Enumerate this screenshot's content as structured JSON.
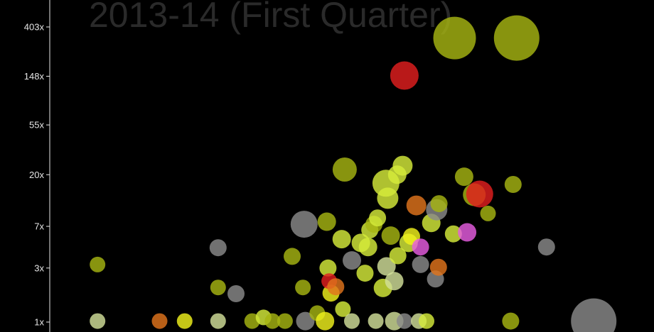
{
  "chart_data": {
    "type": "scatter",
    "title": "2013-14 (First Quarter)",
    "xlabel": "",
    "ylabel": "",
    "y_scale": "log",
    "ylim": [
      0.95,
      530
    ],
    "y_ticks": [
      {
        "value": 1,
        "label": "1x"
      },
      {
        "value": 3,
        "label": "3x"
      },
      {
        "value": 7,
        "label": "7x"
      },
      {
        "value": 20,
        "label": "20x"
      },
      {
        "value": 55,
        "label": "55x"
      },
      {
        "value": 148,
        "label": "148x"
      },
      {
        "value": 403,
        "label": "403x"
      }
    ],
    "x_scale": "unlabeled",
    "xlim": [
      0,
      100
    ],
    "grid": false,
    "colors": {
      "olive": "#a6b412",
      "lime": "#d6ec3a",
      "yellow": "#f0f21c",
      "red": "#e21f1f",
      "orange": "#e0741c",
      "gray": "#8a8a8a",
      "pink": "#e75de0",
      "pale": "#d2df9a"
    },
    "points": [
      {
        "x": 7.4,
        "y": 3.22,
        "size": 11,
        "color": "olive"
      },
      {
        "x": 7.4,
        "y": 1.02,
        "size": 11,
        "color": "pale"
      },
      {
        "x": 17.8,
        "y": 1.02,
        "size": 11,
        "color": "orange"
      },
      {
        "x": 22.0,
        "y": 1.02,
        "size": 11,
        "color": "yellow"
      },
      {
        "x": 27.6,
        "y": 1.02,
        "size": 11,
        "color": "pale"
      },
      {
        "x": 27.6,
        "y": 4.53,
        "size": 12,
        "color": "gray"
      },
      {
        "x": 27.6,
        "y": 2.02,
        "size": 11,
        "color": "olive"
      },
      {
        "x": 30.6,
        "y": 1.78,
        "size": 12,
        "color": "gray"
      },
      {
        "x": 33.3,
        "y": 1.02,
        "size": 11,
        "color": "olive"
      },
      {
        "x": 35.2,
        "y": 1.1,
        "size": 11,
        "color": "lime"
      },
      {
        "x": 36.7,
        "y": 1.02,
        "size": 11,
        "color": "olive"
      },
      {
        "x": 38.8,
        "y": 1.02,
        "size": 11,
        "color": "olive"
      },
      {
        "x": 40.0,
        "y": 3.8,
        "size": 12,
        "color": "olive"
      },
      {
        "x": 42.0,
        "y": 7.3,
        "size": 19,
        "color": "gray"
      },
      {
        "x": 42.2,
        "y": 1.02,
        "size": 13,
        "color": "gray"
      },
      {
        "x": 41.8,
        "y": 2.02,
        "size": 11,
        "color": "olive"
      },
      {
        "x": 44.2,
        "y": 1.2,
        "size": 11,
        "color": "olive"
      },
      {
        "x": 45.5,
        "y": 1.02,
        "size": 13,
        "color": "yellow"
      },
      {
        "x": 45.8,
        "y": 7.7,
        "size": 13,
        "color": "olive"
      },
      {
        "x": 46.0,
        "y": 3.0,
        "size": 12,
        "color": "lime"
      },
      {
        "x": 46.5,
        "y": 1.8,
        "size": 12,
        "color": "yellow"
      },
      {
        "x": 46.2,
        "y": 2.3,
        "size": 11,
        "color": "red"
      },
      {
        "x": 47.3,
        "y": 2.05,
        "size": 12,
        "color": "orange"
      },
      {
        "x": 48.5,
        "y": 1.3,
        "size": 11,
        "color": "lime"
      },
      {
        "x": 48.8,
        "y": 22.2,
        "size": 17,
        "color": "olive"
      },
      {
        "x": 48.3,
        "y": 5.4,
        "size": 13,
        "color": "lime"
      },
      {
        "x": 50.0,
        "y": 3.5,
        "size": 13,
        "color": "gray"
      },
      {
        "x": 50.0,
        "y": 1.02,
        "size": 11,
        "color": "pale"
      },
      {
        "x": 51.5,
        "y": 5.0,
        "size": 13,
        "color": "lime"
      },
      {
        "x": 52.2,
        "y": 2.7,
        "size": 12,
        "color": "lime"
      },
      {
        "x": 52.7,
        "y": 4.6,
        "size": 13,
        "color": "lime"
      },
      {
        "x": 53.0,
        "y": 6.5,
        "size": 12,
        "color": "lime"
      },
      {
        "x": 53.7,
        "y": 7.3,
        "size": 12,
        "color": "olive"
      },
      {
        "x": 54.0,
        "y": 1.02,
        "size": 11,
        "color": "pale"
      },
      {
        "x": 54.3,
        "y": 8.3,
        "size": 12,
        "color": "lime"
      },
      {
        "x": 55.2,
        "y": 2.0,
        "size": 13,
        "color": "lime"
      },
      {
        "x": 55.8,
        "y": 3.1,
        "size": 13,
        "color": "pale"
      },
      {
        "x": 56.5,
        "y": 5.8,
        "size": 13,
        "color": "olive"
      },
      {
        "x": 55.7,
        "y": 16.8,
        "size": 19,
        "color": "lime"
      },
      {
        "x": 56.0,
        "y": 12.4,
        "size": 15,
        "color": "lime"
      },
      {
        "x": 57.6,
        "y": 20.0,
        "size": 13,
        "color": "lime"
      },
      {
        "x": 57.1,
        "y": 2.3,
        "size": 13,
        "color": "pale"
      },
      {
        "x": 57.1,
        "y": 1.02,
        "size": 13,
        "color": "pale"
      },
      {
        "x": 57.7,
        "y": 3.85,
        "size": 12,
        "color": "lime"
      },
      {
        "x": 58.5,
        "y": 24.0,
        "size": 14,
        "color": "lime"
      },
      {
        "x": 58.8,
        "y": 1.02,
        "size": 11,
        "color": "gray"
      },
      {
        "x": 59.5,
        "y": 5.0,
        "size": 13,
        "color": "lime"
      },
      {
        "x": 60.0,
        "y": 5.7,
        "size": 12,
        "color": "yellow"
      },
      {
        "x": 60.8,
        "y": 10.7,
        "size": 14,
        "color": "orange"
      },
      {
        "x": 61.2,
        "y": 1.02,
        "size": 11,
        "color": "pale"
      },
      {
        "x": 61.5,
        "y": 4.6,
        "size": 12,
        "color": "pink"
      },
      {
        "x": 61.5,
        "y": 3.22,
        "size": 12,
        "color": "gray"
      },
      {
        "x": 62.5,
        "y": 1.02,
        "size": 11,
        "color": "lime"
      },
      {
        "x": 63.3,
        "y": 7.5,
        "size": 13,
        "color": "lime"
      },
      {
        "x": 64.2,
        "y": 9.8,
        "size": 15,
        "color": "gray"
      },
      {
        "x": 64.0,
        "y": 2.4,
        "size": 12,
        "color": "gray"
      },
      {
        "x": 64.5,
        "y": 3.05,
        "size": 12,
        "color": "orange"
      },
      {
        "x": 64.6,
        "y": 11.1,
        "size": 12,
        "color": "olive"
      },
      {
        "x": 67.0,
        "y": 6.0,
        "size": 12,
        "color": "lime"
      },
      {
        "x": 58.8,
        "y": 150.0,
        "size": 20,
        "color": "red"
      },
      {
        "x": 67.2,
        "y": 322.0,
        "size": 30,
        "color": "olive"
      },
      {
        "x": 68.8,
        "y": 19.2,
        "size": 13,
        "color": "olive"
      },
      {
        "x": 69.3,
        "y": 6.2,
        "size": 13,
        "color": "pink"
      },
      {
        "x": 70.5,
        "y": 13.3,
        "size": 16,
        "color": "olive"
      },
      {
        "x": 71.4,
        "y": 13.5,
        "size": 19,
        "color": "red"
      },
      {
        "x": 72.8,
        "y": 9.1,
        "size": 11,
        "color": "olive"
      },
      {
        "x": 76.6,
        "y": 1.02,
        "size": 12,
        "color": "olive"
      },
      {
        "x": 77.0,
        "y": 16.4,
        "size": 12,
        "color": "olive"
      },
      {
        "x": 77.6,
        "y": 322.0,
        "size": 32,
        "color": "olive"
      },
      {
        "x": 82.6,
        "y": 4.6,
        "size": 12,
        "color": "gray"
      },
      {
        "x": 90.5,
        "y": 1.02,
        "size": 32,
        "color": "gray"
      }
    ]
  }
}
